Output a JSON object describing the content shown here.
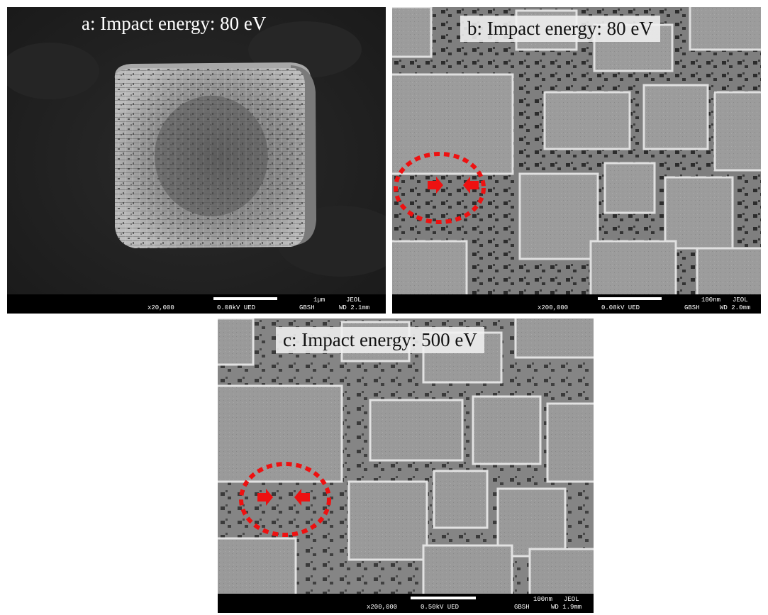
{
  "figure": {
    "panels": [
      {
        "id": "a",
        "caption": "a: Impact energy: 80 eV",
        "databar": {
          "magnification": "x20,000",
          "voltage_detector": "0.08kV UED",
          "scale": "1μm",
          "brand": "JEOL",
          "site": "GBSH",
          "working_distance": "WD 2.1mm"
        }
      },
      {
        "id": "b",
        "caption": "b: Impact energy: 80 eV",
        "databar": {
          "magnification": "x200,000",
          "voltage_detector": "0.08kV UED",
          "scale": "100nm",
          "brand": "JEOL",
          "site": "GBSH",
          "working_distance": "WD 2.0mm"
        }
      },
      {
        "id": "c",
        "caption": "c: Impact energy: 500 eV",
        "databar": {
          "magnification": "x200,000",
          "voltage_detector": "0.50kV UED",
          "scale": "100nm",
          "brand": "JEOL",
          "site": "GBSH",
          "working_distance": "WD 1.9mm"
        }
      }
    ],
    "colors": {
      "highlight_circle": "#ee1111",
      "arrow": "#ee1111"
    }
  }
}
